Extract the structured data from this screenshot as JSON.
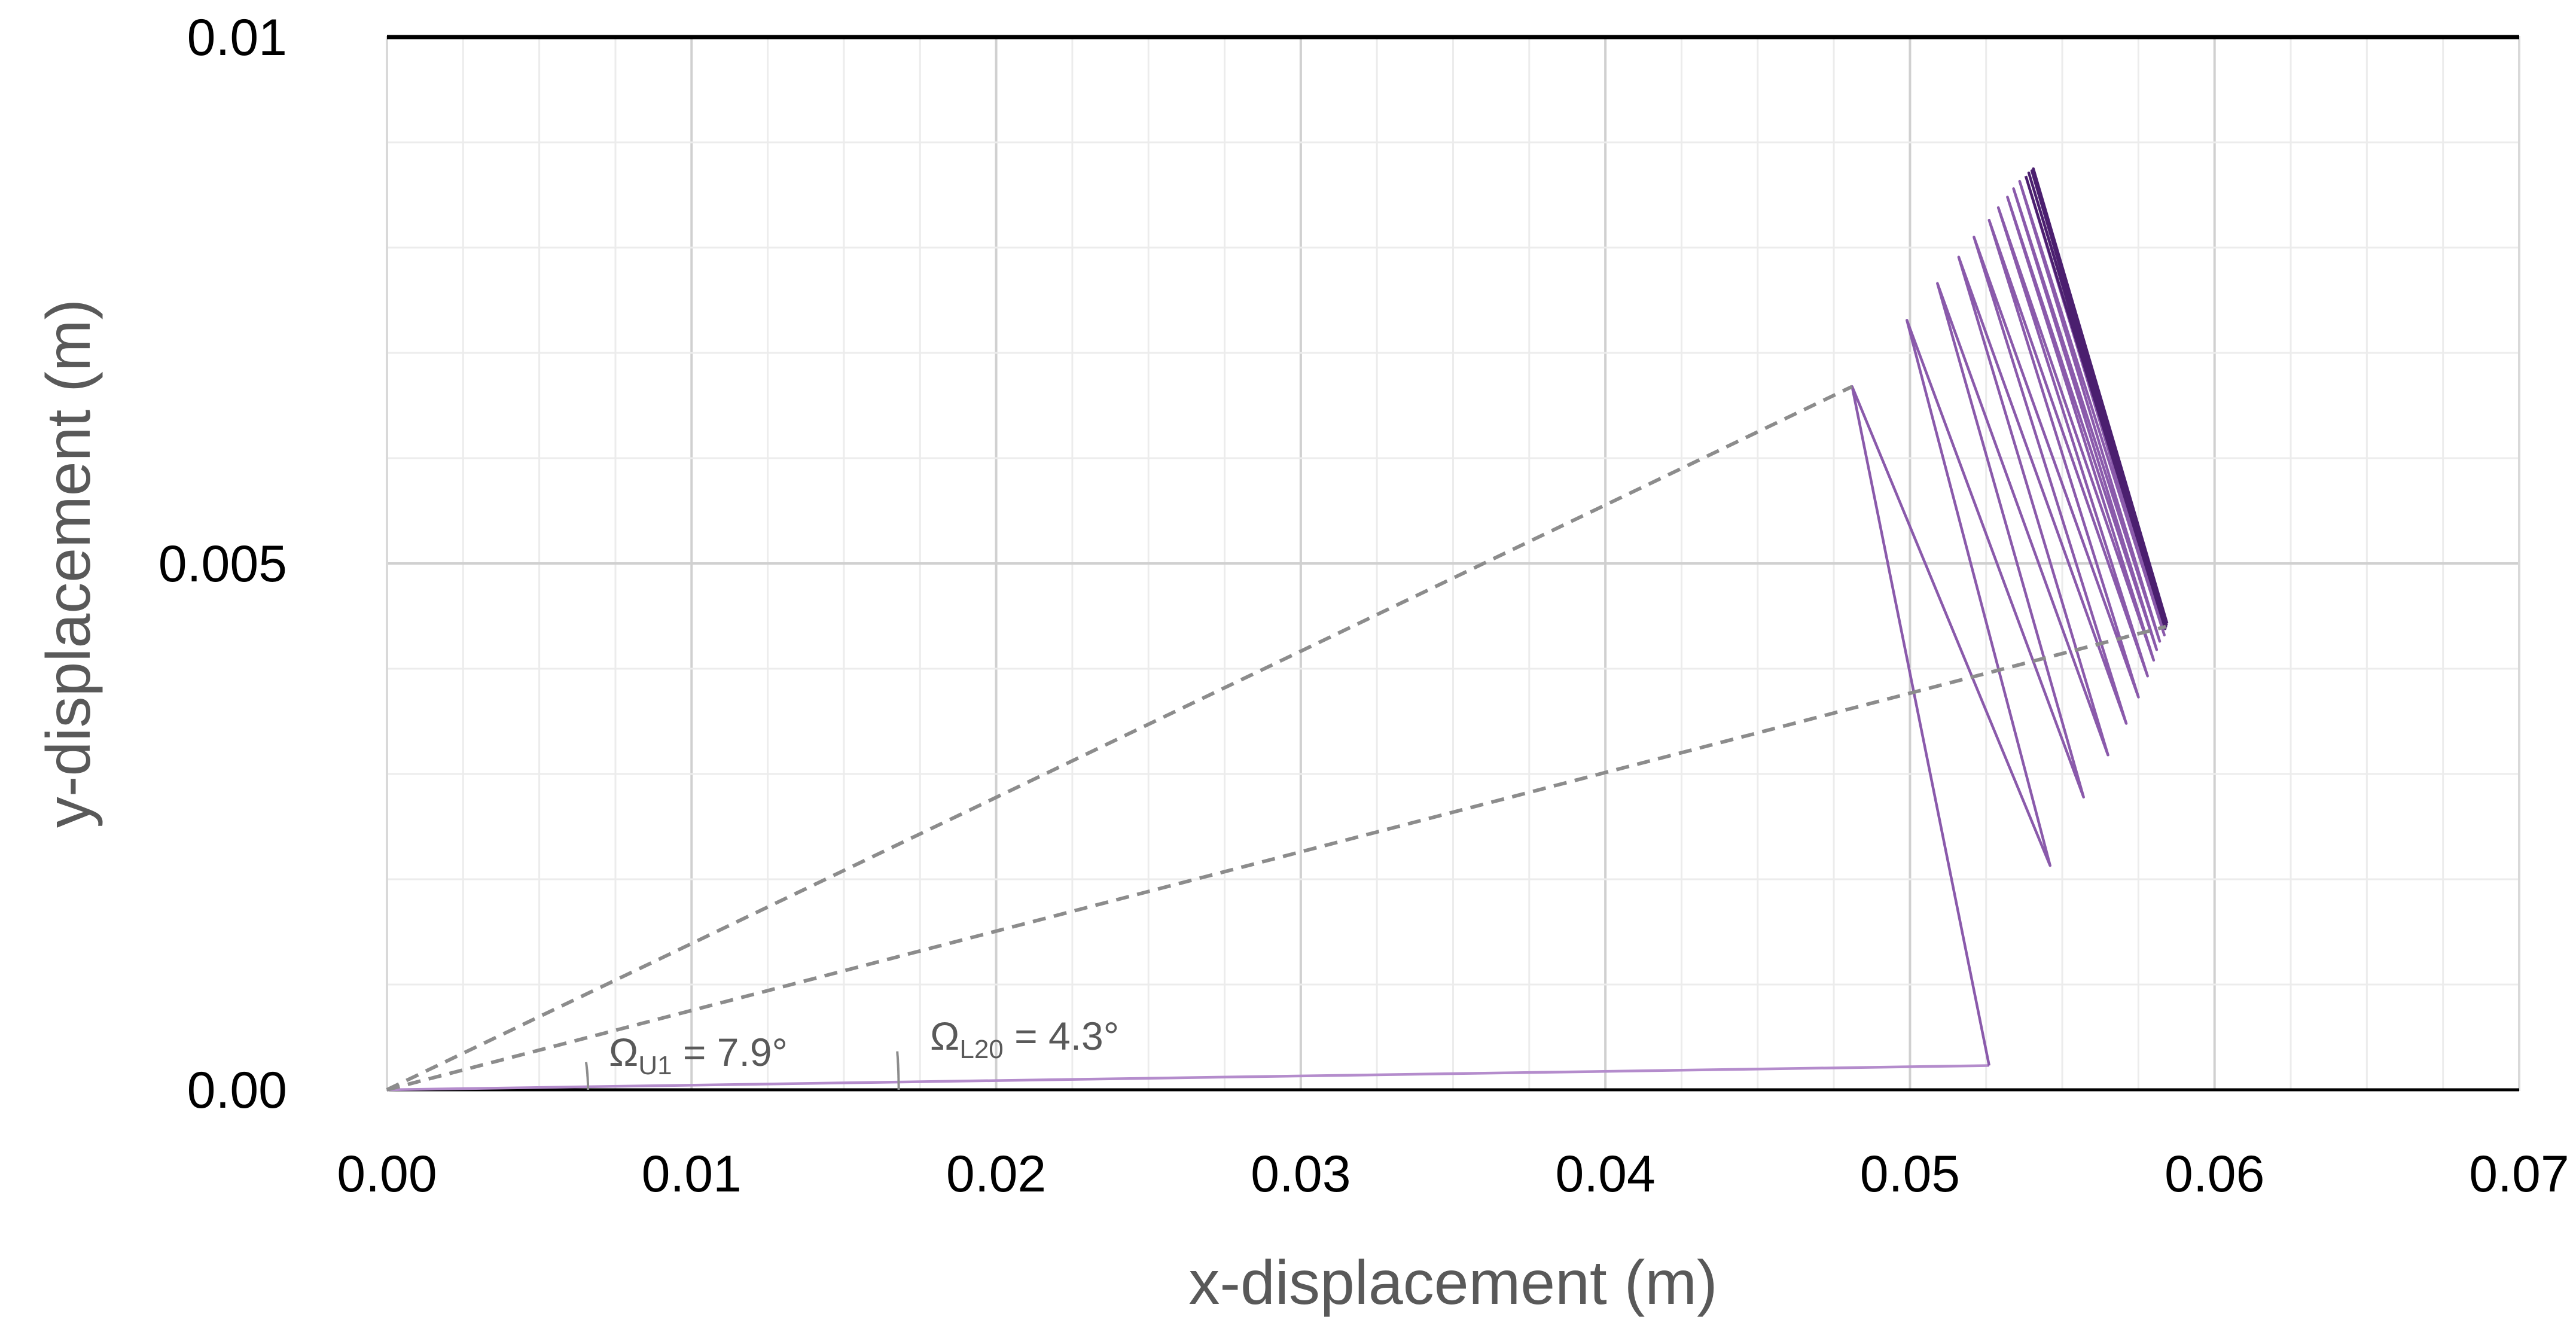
{
  "chart_data": {
    "type": "line",
    "title": "",
    "xlabel": "x-displacement (m)",
    "ylabel": "y-displacement (m)",
    "xlim": [
      0,
      0.07
    ],
    "ylim": [
      0,
      0.01
    ],
    "x_ticks": [
      "0.00",
      "0.01",
      "0.02",
      "0.03",
      "0.04",
      "0.05",
      "0.06",
      "0.07"
    ],
    "y_ticks": [
      {
        "value": 0,
        "label": "0.00"
      },
      {
        "value": 0.005,
        "label": "0.005"
      },
      {
        "value": 0.01,
        "label": "0.01"
      }
    ],
    "grid": true,
    "legend": "none",
    "series": [
      {
        "color": "#b48ccc",
        "style": "solid",
        "points": [
          [
            0,
            0
          ],
          [
            0.0526,
            0.00023
          ]
        ]
      },
      {
        "color": "#8a5aab",
        "style": "solid",
        "points": [
          [
            0.0526,
            0.00023
          ],
          [
            0.0481,
            0.00668
          ],
          [
            0.0546,
            0.00213
          ],
          [
            0.0499,
            0.00731
          ],
          [
            0.0557,
            0.00278
          ],
          [
            0.0509,
            0.00766
          ],
          [
            0.0565,
            0.00318
          ],
          [
            0.0516,
            0.00791
          ],
          [
            0.0571,
            0.00348
          ],
          [
            0.0521,
            0.0081
          ],
          [
            0.0575,
            0.00373
          ],
          [
            0.0526,
            0.00826
          ],
          [
            0.0578,
            0.00393
          ],
          [
            0.0529,
            0.00838
          ],
          [
            0.058,
            0.00408
          ],
          [
            0.0532,
            0.00848
          ],
          [
            0.0581,
            0.00418
          ],
          [
            0.0534,
            0.00856
          ],
          [
            0.0582,
            0.00426
          ],
          [
            0.0536,
            0.00863
          ],
          [
            0.05835,
            0.00432
          ],
          [
            0.0538,
            0.00868
          ]
        ]
      },
      {
        "color": "#4b1f6f",
        "style": "solid",
        "points": [
          [
            0.0538,
            0.00868
          ],
          [
            0.05838,
            0.00438
          ],
          [
            0.0539,
            0.00871
          ],
          [
            0.0584,
            0.0044
          ],
          [
            0.054,
            0.00873
          ],
          [
            0.05842,
            0.00442
          ],
          [
            0.05405,
            0.00875
          ],
          [
            0.05844,
            0.00443
          ]
        ]
      },
      {
        "color": "#8c8c8c",
        "style": "dashed",
        "points": [
          [
            0,
            0
          ],
          [
            0.0481,
            0.00668
          ]
        ]
      },
      {
        "color": "#8c8c8c",
        "style": "dashed",
        "points": [
          [
            0,
            0
          ],
          [
            0.0584,
            0.0044
          ]
        ]
      }
    ],
    "annotations": [
      {
        "symbol": "Ω",
        "subscript": "U1",
        "rest": " = 7.9°",
        "angle_deg": 7.9,
        "arc_radius": 0.0066
      },
      {
        "symbol": "Ω",
        "subscript": "L20",
        "rest": " = 4.3°",
        "angle_deg": 4.3,
        "arc_radius": 0.0168
      }
    ]
  }
}
